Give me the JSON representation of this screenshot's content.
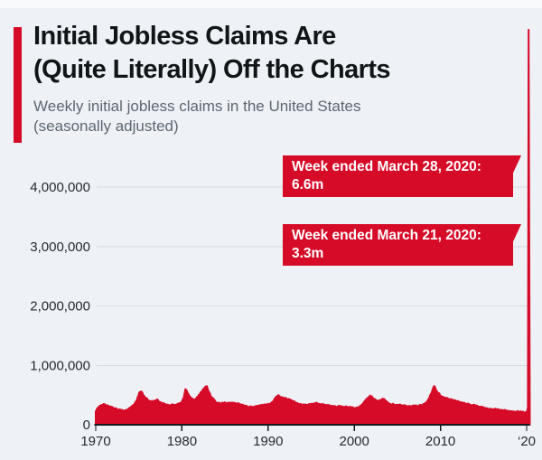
{
  "colors": {
    "accent_red": "#d60b28",
    "background": "#eef1f6",
    "title_text": "#121518",
    "subtitle_text": "#5d6771",
    "axis_text": "#262b31",
    "gridline": "#d7dce2",
    "axis_line": "#16191d",
    "annotation_text": "#ffffff"
  },
  "header": {
    "title_line1": "Initial Jobless Claims Are",
    "title_line2": "(Quite Literally) Off the Charts",
    "subtitle_line1": "Weekly initial jobless claims in the United States",
    "subtitle_line2": "(seasonally adjusted)"
  },
  "annotations": [
    {
      "label": "Week ended March 28, 2020:",
      "value": "6.6m"
    },
    {
      "label": "Week ended March 21, 2020:",
      "value": "3.3m"
    }
  ],
  "chart_data": {
    "type": "area",
    "title": "Weekly initial jobless claims in the United States (seasonally adjusted)",
    "xlabel": "",
    "ylabel": "",
    "units": "values in thousands of claims per week",
    "x_range": [
      1970,
      2020.3
    ],
    "ylim": [
      0,
      4000000
    ],
    "grid": true,
    "yticks": [
      {
        "value": 4000,
        "label": "4,000,000"
      },
      {
        "value": 3000,
        "label": "3,000,000"
      },
      {
        "value": 2000,
        "label": "2,000,000"
      },
      {
        "value": 1000,
        "label": "1,000,000"
      },
      {
        "value": 0,
        "label": "0"
      }
    ],
    "xticks": [
      {
        "value": 1970,
        "label": "1970"
      },
      {
        "value": 1980,
        "label": "1980"
      },
      {
        "value": 1990,
        "label": "1990"
      },
      {
        "value": 2000,
        "label": "2000"
      },
      {
        "value": 2010,
        "label": "2010"
      },
      {
        "value": 2020,
        "label": "‘20"
      }
    ],
    "highlights": [
      {
        "x": 2020.19,
        "y_thousands": 3283,
        "note": "Week ended March 21, 2020: 3.3m"
      },
      {
        "x": 2020.23,
        "y_thousands": 6648,
        "note": "Week ended March 28, 2020: 6.6m"
      }
    ],
    "series": [
      {
        "name": "Initial jobless claims",
        "points": [
          [
            1970.0,
            230
          ],
          [
            1970.3,
            290
          ],
          [
            1970.6,
            330
          ],
          [
            1970.9,
            350
          ],
          [
            1971.2,
            330
          ],
          [
            1971.5,
            310
          ],
          [
            1971.8,
            300
          ],
          [
            1972.1,
            280
          ],
          [
            1972.5,
            260
          ],
          [
            1972.9,
            250
          ],
          [
            1973.3,
            240
          ],
          [
            1973.7,
            250
          ],
          [
            1974.0,
            290
          ],
          [
            1974.4,
            330
          ],
          [
            1974.8,
            430
          ],
          [
            1975.1,
            550
          ],
          [
            1975.3,
            560
          ],
          [
            1975.5,
            500
          ],
          [
            1975.8,
            450
          ],
          [
            1976.1,
            410
          ],
          [
            1976.5,
            390
          ],
          [
            1976.9,
            400
          ],
          [
            1977.2,
            420
          ],
          [
            1977.4,
            380
          ],
          [
            1977.7,
            360
          ],
          [
            1978.0,
            350
          ],
          [
            1978.4,
            330
          ],
          [
            1978.8,
            340
          ],
          [
            1979.2,
            330
          ],
          [
            1979.6,
            350
          ],
          [
            1979.9,
            370
          ],
          [
            1980.2,
            450
          ],
          [
            1980.4,
            600
          ],
          [
            1980.6,
            560
          ],
          [
            1980.9,
            480
          ],
          [
            1981.2,
            440
          ],
          [
            1981.5,
            420
          ],
          [
            1981.8,
            470
          ],
          [
            1982.1,
            520
          ],
          [
            1982.4,
            580
          ],
          [
            1982.7,
            640
          ],
          [
            1982.9,
            650
          ],
          [
            1983.1,
            560
          ],
          [
            1983.4,
            470
          ],
          [
            1983.7,
            420
          ],
          [
            1983.9,
            390
          ],
          [
            1984.2,
            370
          ],
          [
            1984.6,
            360
          ],
          [
            1985.0,
            370
          ],
          [
            1985.4,
            360
          ],
          [
            1985.8,
            370
          ],
          [
            1986.2,
            360
          ],
          [
            1986.6,
            350
          ],
          [
            1987.0,
            330
          ],
          [
            1987.4,
            310
          ],
          [
            1987.8,
            300
          ],
          [
            1988.2,
            300
          ],
          [
            1988.6,
            310
          ],
          [
            1989.0,
            320
          ],
          [
            1989.4,
            330
          ],
          [
            1989.8,
            340
          ],
          [
            1990.2,
            350
          ],
          [
            1990.5,
            380
          ],
          [
            1990.8,
            440
          ],
          [
            1991.0,
            480
          ],
          [
            1991.2,
            500
          ],
          [
            1991.5,
            460
          ],
          [
            1991.8,
            450
          ],
          [
            1992.1,
            440
          ],
          [
            1992.5,
            420
          ],
          [
            1992.9,
            400
          ],
          [
            1993.2,
            370
          ],
          [
            1993.6,
            350
          ],
          [
            1994.0,
            340
          ],
          [
            1994.4,
            330
          ],
          [
            1994.8,
            340
          ],
          [
            1995.2,
            350
          ],
          [
            1995.6,
            360
          ],
          [
            1996.0,
            350
          ],
          [
            1996.4,
            340
          ],
          [
            1996.8,
            330
          ],
          [
            1997.2,
            320
          ],
          [
            1997.6,
            310
          ],
          [
            1998.0,
            300
          ],
          [
            1998.4,
            310
          ],
          [
            1998.8,
            300
          ],
          [
            1999.2,
            300
          ],
          [
            1999.6,
            290
          ],
          [
            2000.0,
            280
          ],
          [
            2000.4,
            290
          ],
          [
            2000.8,
            320
          ],
          [
            2001.1,
            380
          ],
          [
            2001.4,
            420
          ],
          [
            2001.7,
            470
          ],
          [
            2001.9,
            490
          ],
          [
            2002.2,
            440
          ],
          [
            2002.5,
            410
          ],
          [
            2002.8,
            400
          ],
          [
            2003.1,
            420
          ],
          [
            2003.4,
            430
          ],
          [
            2003.7,
            400
          ],
          [
            2003.9,
            370
          ],
          [
            2004.2,
            350
          ],
          [
            2004.6,
            340
          ],
          [
            2005.0,
            330
          ],
          [
            2005.4,
            330
          ],
          [
            2005.8,
            320
          ],
          [
            2006.2,
            310
          ],
          [
            2006.6,
            310
          ],
          [
            2007.0,
            320
          ],
          [
            2007.4,
            310
          ],
          [
            2007.8,
            330
          ],
          [
            2008.1,
            350
          ],
          [
            2008.4,
            380
          ],
          [
            2008.7,
            450
          ],
          [
            2008.9,
            520
          ],
          [
            2009.1,
            600
          ],
          [
            2009.3,
            650
          ],
          [
            2009.5,
            570
          ],
          [
            2009.8,
            530
          ],
          [
            2010.1,
            480
          ],
          [
            2010.4,
            460
          ],
          [
            2010.7,
            450
          ],
          [
            2011.0,
            430
          ],
          [
            2011.3,
            420
          ],
          [
            2011.6,
            410
          ],
          [
            2011.9,
            400
          ],
          [
            2012.2,
            380
          ],
          [
            2012.5,
            370
          ],
          [
            2012.8,
            370
          ],
          [
            2013.1,
            350
          ],
          [
            2013.4,
            340
          ],
          [
            2013.7,
            330
          ],
          [
            2014.0,
            330
          ],
          [
            2014.3,
            320
          ],
          [
            2014.6,
            300
          ],
          [
            2014.9,
            290
          ],
          [
            2015.2,
            280
          ],
          [
            2015.5,
            270
          ],
          [
            2015.8,
            270
          ],
          [
            2016.1,
            260
          ],
          [
            2016.4,
            270
          ],
          [
            2016.7,
            260
          ],
          [
            2017.0,
            250
          ],
          [
            2017.3,
            240
          ],
          [
            2017.6,
            240
          ],
          [
            2017.9,
            230
          ],
          [
            2018.2,
            230
          ],
          [
            2018.5,
            220
          ],
          [
            2018.8,
            220
          ],
          [
            2019.1,
            220
          ],
          [
            2019.4,
            215
          ],
          [
            2019.7,
            210
          ],
          [
            2020.0,
            212
          ],
          [
            2020.15,
            282
          ],
          [
            2020.19,
            3283
          ],
          [
            2020.23,
            6648
          ]
        ]
      }
    ]
  }
}
